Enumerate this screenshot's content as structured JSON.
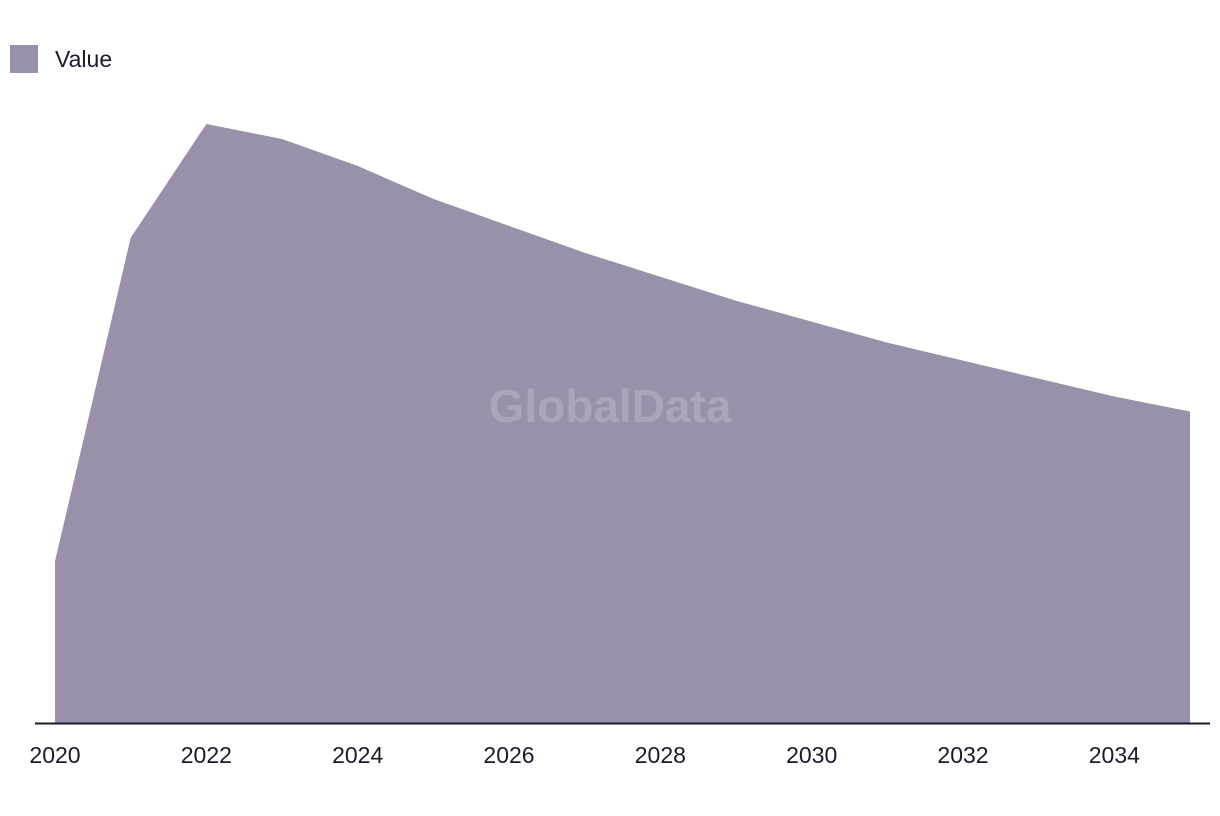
{
  "chart_data": {
    "type": "area",
    "title": "",
    "xlabel": "",
    "ylabel": "",
    "x": [
      2020,
      2021,
      2022,
      2023,
      2024,
      2025,
      2026,
      2027,
      2028,
      2029,
      2030,
      2031,
      2032,
      2033,
      2034,
      2035
    ],
    "series": [
      {
        "name": "Value",
        "color": "#9a90aa",
        "values": [
          27,
          81,
          100,
          97.5,
          93,
          87.5,
          83,
          78.5,
          74.5,
          70.5,
          67,
          63.5,
          60.5,
          57.5,
          54.5,
          52
        ]
      }
    ],
    "xticks": [
      "2020",
      "2022",
      "2024",
      "2026",
      "2028",
      "2030",
      "2032",
      "2034"
    ],
    "xlim": [
      2020,
      2035
    ],
    "ylim": [
      0,
      100
    ],
    "grid": false,
    "legend_position": "top-left",
    "axis_color": "#1a1a2e"
  },
  "legend": {
    "label": "Value"
  },
  "watermark": "GlobalData"
}
